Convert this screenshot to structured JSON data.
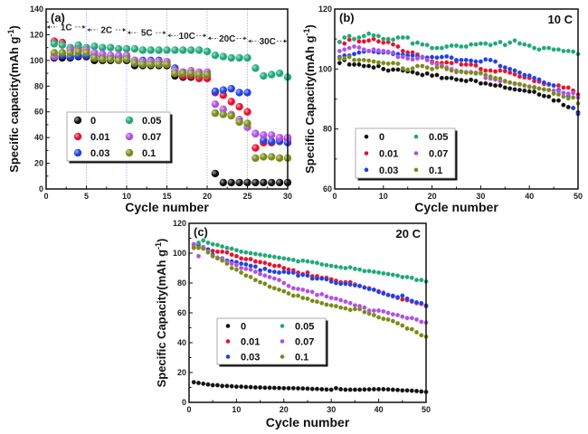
{
  "chart_data": [
    {
      "id": "a",
      "type": "scatter",
      "panel_label": "(a)",
      "title": "",
      "xlabel": "Cycle number",
      "ylabel": "Specific capacity(mAh g",
      "ylabel_sup": "-1",
      "ylabel_close": ")",
      "xlim": [
        0,
        30
      ],
      "ylim": [
        0,
        140
      ],
      "xticks": [
        0,
        5,
        10,
        15,
        20,
        25,
        30
      ],
      "yticks": [
        0,
        20,
        40,
        60,
        80,
        100,
        120,
        140
      ],
      "vlines": [
        5,
        10,
        15,
        20,
        25,
        30
      ],
      "rate_segments": [
        {
          "label": "1C",
          "from": 0,
          "to": 5
        },
        {
          "label": "2C",
          "from": 5,
          "to": 10
        },
        {
          "label": "5C",
          "from": 10,
          "to": 15
        },
        {
          "label": "10C",
          "from": 15,
          "to": 20
        },
        {
          "label": "20C",
          "from": 20,
          "to": 25
        },
        {
          "label": "30C",
          "from": 25,
          "to": 30
        }
      ],
      "legend_position": "center-left",
      "x": [
        1,
        2,
        3,
        4,
        5,
        6,
        7,
        8,
        9,
        10,
        11,
        12,
        13,
        14,
        15,
        16,
        17,
        18,
        19,
        20,
        21,
        22,
        23,
        24,
        25,
        26,
        27,
        28,
        29,
        30
      ],
      "series": [
        {
          "name": "0",
          "color": "#111111",
          "values": [
            102,
            102,
            102,
            103,
            103,
            100,
            100,
            100,
            100,
            100,
            96,
            96,
            96,
            96,
            96,
            88,
            87,
            87,
            87,
            87,
            12,
            5,
            5,
            5,
            5,
            5,
            5,
            5,
            5,
            5
          ]
        },
        {
          "name": "0.01",
          "color": "#e8102a",
          "values": [
            115,
            114,
            109,
            110,
            108,
            104,
            103,
            103,
            103,
            103,
            99,
            99,
            99,
            99,
            97,
            91,
            88,
            88,
            86,
            86,
            75,
            73,
            68,
            64,
            60,
            32,
            36,
            36,
            39,
            39
          ]
        },
        {
          "name": "0.03",
          "color": "#2040e0",
          "values": [
            103,
            104,
            103,
            104,
            104,
            102,
            102,
            102,
            102,
            102,
            100,
            100,
            100,
            100,
            99,
            94,
            91,
            90,
            89,
            89,
            76,
            77,
            78,
            75,
            75,
            43,
            38,
            37,
            37,
            36
          ]
        },
        {
          "name": "0.05",
          "color": "#20a878",
          "values": [
            113,
            112,
            110,
            112,
            110,
            111,
            110,
            110,
            109,
            109,
            109,
            108,
            108,
            108,
            108,
            108,
            108,
            108,
            108,
            107,
            104,
            103,
            102,
            102,
            102,
            94,
            88,
            89,
            90,
            87
          ]
        },
        {
          "name": "0.07",
          "color": "#b050e0",
          "values": [
            103,
            106,
            108,
            108,
            108,
            106,
            105,
            104,
            104,
            104,
            100,
            99,
            99,
            99,
            99,
            92,
            91,
            92,
            91,
            91,
            66,
            62,
            58,
            54,
            48,
            43,
            42,
            42,
            40,
            40
          ]
        },
        {
          "name": "0.1",
          "color": "#7a8a18",
          "values": [
            106,
            106,
            106,
            107,
            106,
            102,
            101,
            101,
            100,
            101,
            98,
            97,
            97,
            97,
            97,
            90,
            90,
            90,
            89,
            89,
            59,
            58,
            57,
            52,
            51,
            24,
            25,
            25,
            24,
            24
          ]
        }
      ]
    },
    {
      "id": "b",
      "type": "scatter",
      "panel_label": "(b)",
      "title": "10 C",
      "xlabel": "Cycle number",
      "ylabel": "Specific Capacity(mAh g",
      "ylabel_sup": "-1",
      "ylabel_close": ")",
      "xlim": [
        0,
        50
      ],
      "ylim": [
        60,
        120
      ],
      "xticks": [
        0,
        10,
        20,
        30,
        40,
        50
      ],
      "yticks": [
        60,
        80,
        100,
        120
      ],
      "legend_position": "center-left",
      "x": [
        1,
        2,
        3,
        4,
        5,
        6,
        7,
        8,
        9,
        10,
        11,
        12,
        13,
        14,
        15,
        16,
        17,
        18,
        19,
        20,
        21,
        22,
        23,
        24,
        25,
        26,
        27,
        28,
        29,
        30,
        31,
        32,
        33,
        34,
        35,
        36,
        37,
        38,
        39,
        40,
        41,
        42,
        43,
        44,
        45,
        46,
        47,
        48,
        49,
        50
      ],
      "series": [
        {
          "name": "0",
          "color": "#111111",
          "values": [
            102,
            103,
            101.5,
            101.5,
            101.5,
            101,
            101,
            100.5,
            101,
            100,
            99.5,
            99.8,
            99.8,
            99.5,
            99.2,
            99,
            98.5,
            98,
            98.5,
            97.8,
            98,
            97,
            97,
            97,
            96.5,
            96.3,
            96,
            96.4,
            96,
            95.2,
            95.2,
            94.8,
            94.5,
            94.5,
            93.8,
            93.5,
            93.2,
            93,
            92.8,
            92.5,
            92.4,
            91.5,
            91,
            90.8,
            89.5,
            89.5,
            88,
            87.3,
            87,
            85.5
          ]
        },
        {
          "name": "0.01",
          "color": "#e8102a",
          "values": [
            109,
            108.5,
            109.8,
            110,
            109.2,
            109.2,
            109.5,
            110,
            109.2,
            108.8,
            109,
            108.2,
            107.5,
            106,
            105.5,
            105.5,
            104.8,
            104,
            103,
            102.5,
            102,
            102,
            102.2,
            102,
            102.5,
            101.5,
            101.5,
            101.5,
            101.2,
            100,
            99.5,
            99.5,
            99.2,
            99.5,
            99.3,
            98.8,
            98.2,
            97.5,
            97.2,
            97,
            96,
            95.8,
            95,
            94.8,
            94.5,
            94.5,
            93.8,
            93.8,
            92.8,
            91.5
          ]
        },
        {
          "name": "0.03",
          "color": "#2040e0",
          "values": [
            104,
            104.5,
            104.5,
            105,
            105.5,
            105.8,
            106,
            105.8,
            105.5,
            105.5,
            105.5,
            105,
            105,
            104.8,
            104.5,
            104.5,
            104.2,
            104,
            103.8,
            104,
            103.8,
            104,
            104.2,
            103.8,
            103,
            103,
            103,
            102.8,
            102.5,
            102.5,
            103.2,
            103,
            102.5,
            101,
            100.5,
            100,
            99.5,
            98.8,
            98,
            97.8,
            97,
            96.5,
            95.5,
            95,
            94.5,
            93,
            92,
            91,
            87,
            85
          ]
        },
        {
          "name": "0.05",
          "color": "#20a878",
          "values": [
            109,
            110.5,
            111,
            110,
            110.5,
            111,
            111.8,
            111.2,
            111,
            110,
            110,
            109.8,
            110.5,
            110.5,
            110.5,
            108.5,
            108.8,
            108.2,
            108,
            107,
            107,
            107,
            107.5,
            107.8,
            107.8,
            107.5,
            107.5,
            108.2,
            108.2,
            108.5,
            108.5,
            108,
            108.5,
            109,
            108,
            108.8,
            109.5,
            108.5,
            108.2,
            107.8,
            107,
            106.5,
            107,
            107,
            106.5,
            106.5,
            106,
            106,
            105.8,
            105
          ]
        },
        {
          "name": "0.07",
          "color": "#b050e0",
          "values": [
            106,
            106.5,
            107,
            107.5,
            107.2,
            106.5,
            106,
            106.5,
            106.2,
            106,
            105.8,
            105.5,
            104,
            104,
            103.5,
            103.2,
            103.5,
            103.8,
            103,
            102,
            101.5,
            101.2,
            100.5,
            100,
            99.5,
            99,
            99,
            99,
            98.8,
            98.5,
            97,
            96.8,
            96.5,
            96,
            95.8,
            95.5,
            95,
            94.8,
            94.5,
            94.2,
            94,
            93.5,
            93.2,
            93,
            92.8,
            92.5,
            92,
            91.8,
            92,
            90.5
          ]
        },
        {
          "name": "0.1",
          "color": "#7a8a18",
          "values": [
            103.5,
            103.5,
            104,
            103,
            103,
            103,
            102.8,
            102.5,
            102.2,
            102,
            101.8,
            102,
            101.8,
            100.2,
            99.8,
            100.2,
            101,
            101,
            100.5,
            100,
            100.5,
            100.8,
            100,
            99.5,
            99,
            99.2,
            98.8,
            98.8,
            98.5,
            98.8,
            98,
            97.5,
            97,
            96.8,
            96,
            95.5,
            95.2,
            95,
            94.5,
            94,
            93.8,
            93.5,
            93.2,
            93,
            91.8,
            91.5,
            90.8,
            90.2,
            90.5,
            88.5
          ]
        }
      ]
    },
    {
      "id": "c",
      "type": "scatter",
      "panel_label": "(c)",
      "title": "20 C",
      "xlabel": "Cycle number",
      "ylabel": "Specific Capacity(mAh g",
      "ylabel_sup": "-1",
      "ylabel_close": ")",
      "xlim": [
        0,
        50
      ],
      "ylim": [
        0,
        120
      ],
      "xticks": [
        0,
        10,
        20,
        30,
        40,
        50
      ],
      "yticks": [
        0,
        20,
        40,
        60,
        80,
        100,
        120
      ],
      "legend_position": "center-left",
      "x": [
        1,
        2,
        3,
        4,
        5,
        6,
        7,
        8,
        9,
        10,
        11,
        12,
        13,
        14,
        15,
        16,
        17,
        18,
        19,
        20,
        21,
        22,
        23,
        24,
        25,
        26,
        27,
        28,
        29,
        30,
        31,
        32,
        33,
        34,
        35,
        36,
        37,
        38,
        39,
        40,
        41,
        42,
        43,
        44,
        45,
        46,
        47,
        48,
        49,
        50
      ],
      "series": [
        {
          "name": "0",
          "color": "#111111",
          "values": [
            13.5,
            13,
            12.5,
            12,
            11.5,
            11.5,
            11,
            11,
            10.8,
            10.5,
            10.5,
            10.3,
            10.2,
            10,
            10,
            9.8,
            9.8,
            9.7,
            9.6,
            9.5,
            9.5,
            9.5,
            9.4,
            9.3,
            9.2,
            9,
            9,
            8.8,
            8.6,
            8.5,
            9.5,
            8.8,
            8.5,
            8.5,
            8.5,
            8.5,
            8.6,
            8.7,
            8.8,
            8.8,
            8.8,
            8.7,
            8.5,
            8.3,
            8,
            8,
            7.8,
            7.6,
            7.3,
            7
          ]
        },
        {
          "name": "0.01",
          "color": "#e8102a",
          "values": [
            103.5,
            104,
            103.5,
            102.5,
            101.5,
            101,
            101,
            100.5,
            99,
            98,
            96.5,
            96,
            96,
            94.5,
            94,
            93.5,
            92.5,
            91.5,
            91.5,
            90,
            89,
            88.5,
            87,
            86,
            87,
            84.5,
            84.5,
            83.5,
            83.5,
            82.5,
            81.5,
            80.5,
            80.5,
            80.5,
            79,
            78,
            77,
            76.5,
            75.5,
            74.5,
            73.5,
            72,
            71,
            70,
            69,
            68.5,
            67.5,
            66.5,
            66,
            65
          ]
        },
        {
          "name": "0.03",
          "color": "#2040e0",
          "values": [
            105.5,
            105.5,
            104,
            102.5,
            99,
            97,
            96.5,
            95,
            94.5,
            94,
            93,
            92.5,
            91.5,
            91,
            88.5,
            89.5,
            88,
            87.5,
            87,
            87.5,
            87,
            87,
            85,
            85.5,
            85,
            83,
            83,
            83,
            82.5,
            81,
            80,
            79.5,
            79.5,
            79,
            78.5,
            78,
            77,
            76,
            75.5,
            74,
            73,
            72,
            71.5,
            70.5,
            71.5,
            69.5,
            68,
            67,
            66.5,
            64.5
          ]
        },
        {
          "name": "0.05",
          "color": "#20a878",
          "values": [
            106,
            107,
            108.5,
            107,
            106,
            105.5,
            104.5,
            103.5,
            103,
            102,
            101,
            100.5,
            100,
            99.5,
            99,
            98.5,
            98,
            97.5,
            97,
            96.5,
            96,
            95.5,
            94.5,
            95,
            94.5,
            94,
            93.5,
            92.5,
            92,
            91.5,
            91,
            90.5,
            90,
            90.5,
            89.5,
            89,
            88,
            88,
            87.5,
            87,
            86.5,
            86,
            85.5,
            85,
            84,
            84,
            83.5,
            82,
            82,
            81
          ]
        },
        {
          "name": "0.07",
          "color": "#b050e0",
          "values": [
            106,
            98,
            104,
            101,
            98,
            97,
            96,
            94,
            93,
            92,
            90,
            89.5,
            89,
            87.5,
            86,
            85,
            84,
            83,
            82,
            80,
            78,
            76.5,
            76,
            75.5,
            74.5,
            74,
            72,
            72.5,
            71,
            70,
            69.5,
            68.5,
            67.5,
            66.5,
            65,
            64.5,
            63.5,
            61.5,
            61.5,
            61.5,
            61,
            60,
            59,
            58.5,
            57.5,
            56.5,
            56.5,
            55.5,
            54,
            53.5
          ]
        },
        {
          "name": "0.1",
          "color": "#7a8a18",
          "values": [
            104,
            103.5,
            103,
            100.5,
            98,
            96.5,
            95,
            93,
            90,
            89,
            87,
            85,
            84,
            82,
            80.5,
            79.5,
            77.5,
            76.5,
            75.5,
            74.5,
            73,
            71.5,
            71.5,
            70,
            69.5,
            68,
            67.5,
            66.5,
            65.5,
            65,
            64.5,
            63.5,
            63,
            62,
            62.5,
            62.5,
            60.5,
            59.5,
            58.5,
            57,
            56,
            55.5,
            54.5,
            53,
            51.5,
            49.5,
            49,
            47,
            45,
            44
          ]
        }
      ]
    }
  ]
}
